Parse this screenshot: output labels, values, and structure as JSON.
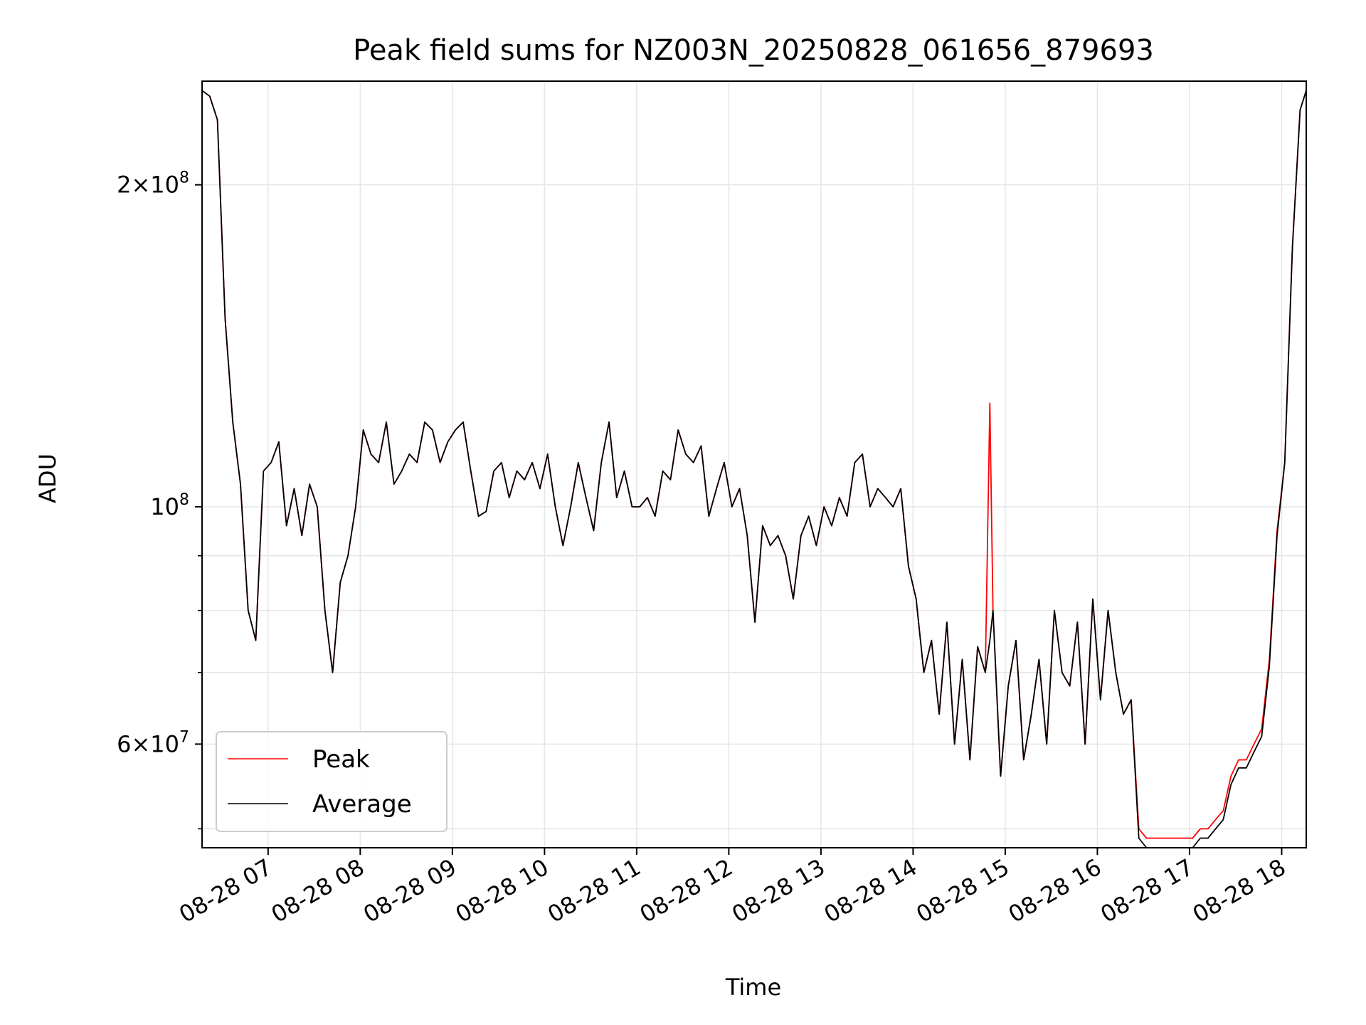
{
  "chart_data": {
    "type": "line",
    "title": "Peak field sums for NZ003N_20250828_061656_879693",
    "xlabel": "Time",
    "ylabel": "ADU",
    "yscale": "log",
    "ylim": [
      48000000,
      250000000
    ],
    "xlim": [
      "2025-08-28 06:17",
      "2025-08-28 18:16"
    ],
    "grid": true,
    "legend": {
      "position": "lower-left",
      "entries": [
        "Peak",
        "Average"
      ]
    },
    "x_ticks": [
      "08-28 07",
      "08-28 08",
      "08-28 09",
      "08-28 10",
      "08-28 11",
      "08-28 12",
      "08-28 13",
      "08-28 14",
      "08-28 15",
      "08-28 16",
      "08-28 17",
      "08-28 18"
    ],
    "y_major_ticks": [
      {
        "value": 60000000,
        "mantissa": "6",
        "exponent": "7"
      },
      {
        "value": 100000000,
        "mantissa": "",
        "exponent": "8"
      },
      {
        "value": 200000000,
        "mantissa": "2",
        "exponent": "8"
      }
    ],
    "y_minor_ticks": [
      50000000,
      70000000,
      80000000,
      90000000,
      300000000
    ],
    "series": [
      {
        "name": "Peak",
        "color": "#ff0000"
      },
      {
        "name": "Average",
        "color": "#000000"
      }
    ],
    "x": [
      "06:17",
      "06:22",
      "06:27",
      "06:32",
      "06:37",
      "06:42",
      "06:47",
      "06:52",
      "06:57",
      "07:02",
      "07:07",
      "07:12",
      "07:17",
      "07:22",
      "07:27",
      "07:32",
      "07:37",
      "07:42",
      "07:47",
      "07:52",
      "07:57",
      "08:02",
      "08:07",
      "08:12",
      "08:17",
      "08:22",
      "08:27",
      "08:32",
      "08:37",
      "08:42",
      "08:47",
      "08:52",
      "08:57",
      "09:02",
      "09:07",
      "09:12",
      "09:17",
      "09:22",
      "09:27",
      "09:32",
      "09:37",
      "09:42",
      "09:47",
      "09:52",
      "09:57",
      "10:02",
      "10:07",
      "10:12",
      "10:17",
      "10:22",
      "10:27",
      "10:32",
      "10:37",
      "10:42",
      "10:47",
      "10:52",
      "10:57",
      "11:02",
      "11:07",
      "11:12",
      "11:17",
      "11:22",
      "11:27",
      "11:32",
      "11:37",
      "11:42",
      "11:47",
      "11:52",
      "11:57",
      "12:02",
      "12:07",
      "12:12",
      "12:17",
      "12:22",
      "12:27",
      "12:32",
      "12:37",
      "12:42",
      "12:47",
      "12:52",
      "12:57",
      "13:02",
      "13:07",
      "13:12",
      "13:17",
      "13:22",
      "13:27",
      "13:32",
      "13:37",
      "13:42",
      "13:47",
      "13:52",
      "13:57",
      "14:02",
      "14:07",
      "14:12",
      "14:17",
      "14:22",
      "14:27",
      "14:32",
      "14:37",
      "14:42",
      "14:47",
      "14:50",
      "14:52",
      "14:57",
      "15:02",
      "15:07",
      "15:12",
      "15:17",
      "15:22",
      "15:27",
      "15:32",
      "15:37",
      "15:42",
      "15:47",
      "15:52",
      "15:57",
      "16:02",
      "16:07",
      "16:12",
      "16:17",
      "16:22",
      "16:27",
      "16:32",
      "16:37",
      "16:42",
      "16:47",
      "16:52",
      "16:57",
      "17:02",
      "17:07",
      "17:12",
      "17:17",
      "17:22",
      "17:27",
      "17:32",
      "17:37",
      "17:42",
      "17:47",
      "17:52",
      "17:57",
      "18:02",
      "18:07",
      "18:12",
      "18:16"
    ],
    "peak_values": [
      245,
      242,
      230,
      150,
      120,
      105,
      80,
      75,
      108,
      110,
      115,
      96,
      104,
      94,
      105,
      100,
      80,
      70,
      85,
      90,
      100,
      118,
      112,
      110,
      120,
      105,
      108,
      112,
      110,
      120,
      118,
      110,
      115,
      118,
      120,
      108,
      98,
      99,
      108,
      110,
      102,
      108,
      106,
      110,
      104,
      112,
      100,
      92,
      100,
      110,
      102,
      95,
      110,
      120,
      102,
      108,
      100,
      100,
      102,
      98,
      108,
      106,
      118,
      112,
      110,
      114,
      98,
      104,
      110,
      100,
      104,
      94,
      78,
      96,
      92,
      94,
      90,
      82,
      94,
      98,
      92,
      100,
      96,
      102,
      98,
      110,
      112,
      100,
      104,
      102,
      100,
      104,
      88,
      82,
      70,
      75,
      64,
      78,
      60,
      72,
      58,
      74,
      70,
      125,
      80,
      56,
      68,
      75,
      58,
      64,
      72,
      60,
      80,
      70,
      68,
      78,
      60,
      82,
      66,
      80,
      70,
      64,
      66,
      50,
      49,
      49,
      49,
      49,
      49,
      49,
      49,
      50,
      50,
      51,
      52,
      56,
      58,
      58,
      60,
      62,
      72,
      95,
      110,
      175,
      235,
      245
    ],
    "avg_values": [
      245,
      242,
      230,
      150,
      120,
      105,
      80,
      75,
      108,
      110,
      115,
      96,
      104,
      94,
      105,
      100,
      80,
      70,
      85,
      90,
      100,
      118,
      112,
      110,
      120,
      105,
      108,
      112,
      110,
      120,
      118,
      110,
      115,
      118,
      120,
      108,
      98,
      99,
      108,
      110,
      102,
      108,
      106,
      110,
      104,
      112,
      100,
      92,
      100,
      110,
      102,
      95,
      110,
      120,
      102,
      108,
      100,
      100,
      102,
      98,
      108,
      106,
      118,
      112,
      110,
      114,
      98,
      104,
      110,
      100,
      104,
      94,
      78,
      96,
      92,
      94,
      90,
      82,
      94,
      98,
      92,
      100,
      96,
      102,
      98,
      110,
      112,
      100,
      104,
      102,
      100,
      104,
      88,
      82,
      70,
      75,
      64,
      78,
      60,
      72,
      58,
      74,
      70,
      75,
      80,
      56,
      68,
      75,
      58,
      64,
      72,
      60,
      80,
      70,
      68,
      78,
      60,
      82,
      66,
      80,
      70,
      64,
      66,
      49,
      48,
      48,
      48,
      48,
      48,
      48,
      48,
      49,
      49,
      50,
      51,
      55,
      57,
      57,
      59,
      61,
      71,
      94,
      110,
      175,
      235,
      245
    ],
    "value_unit_multiplier": 1000000
  }
}
